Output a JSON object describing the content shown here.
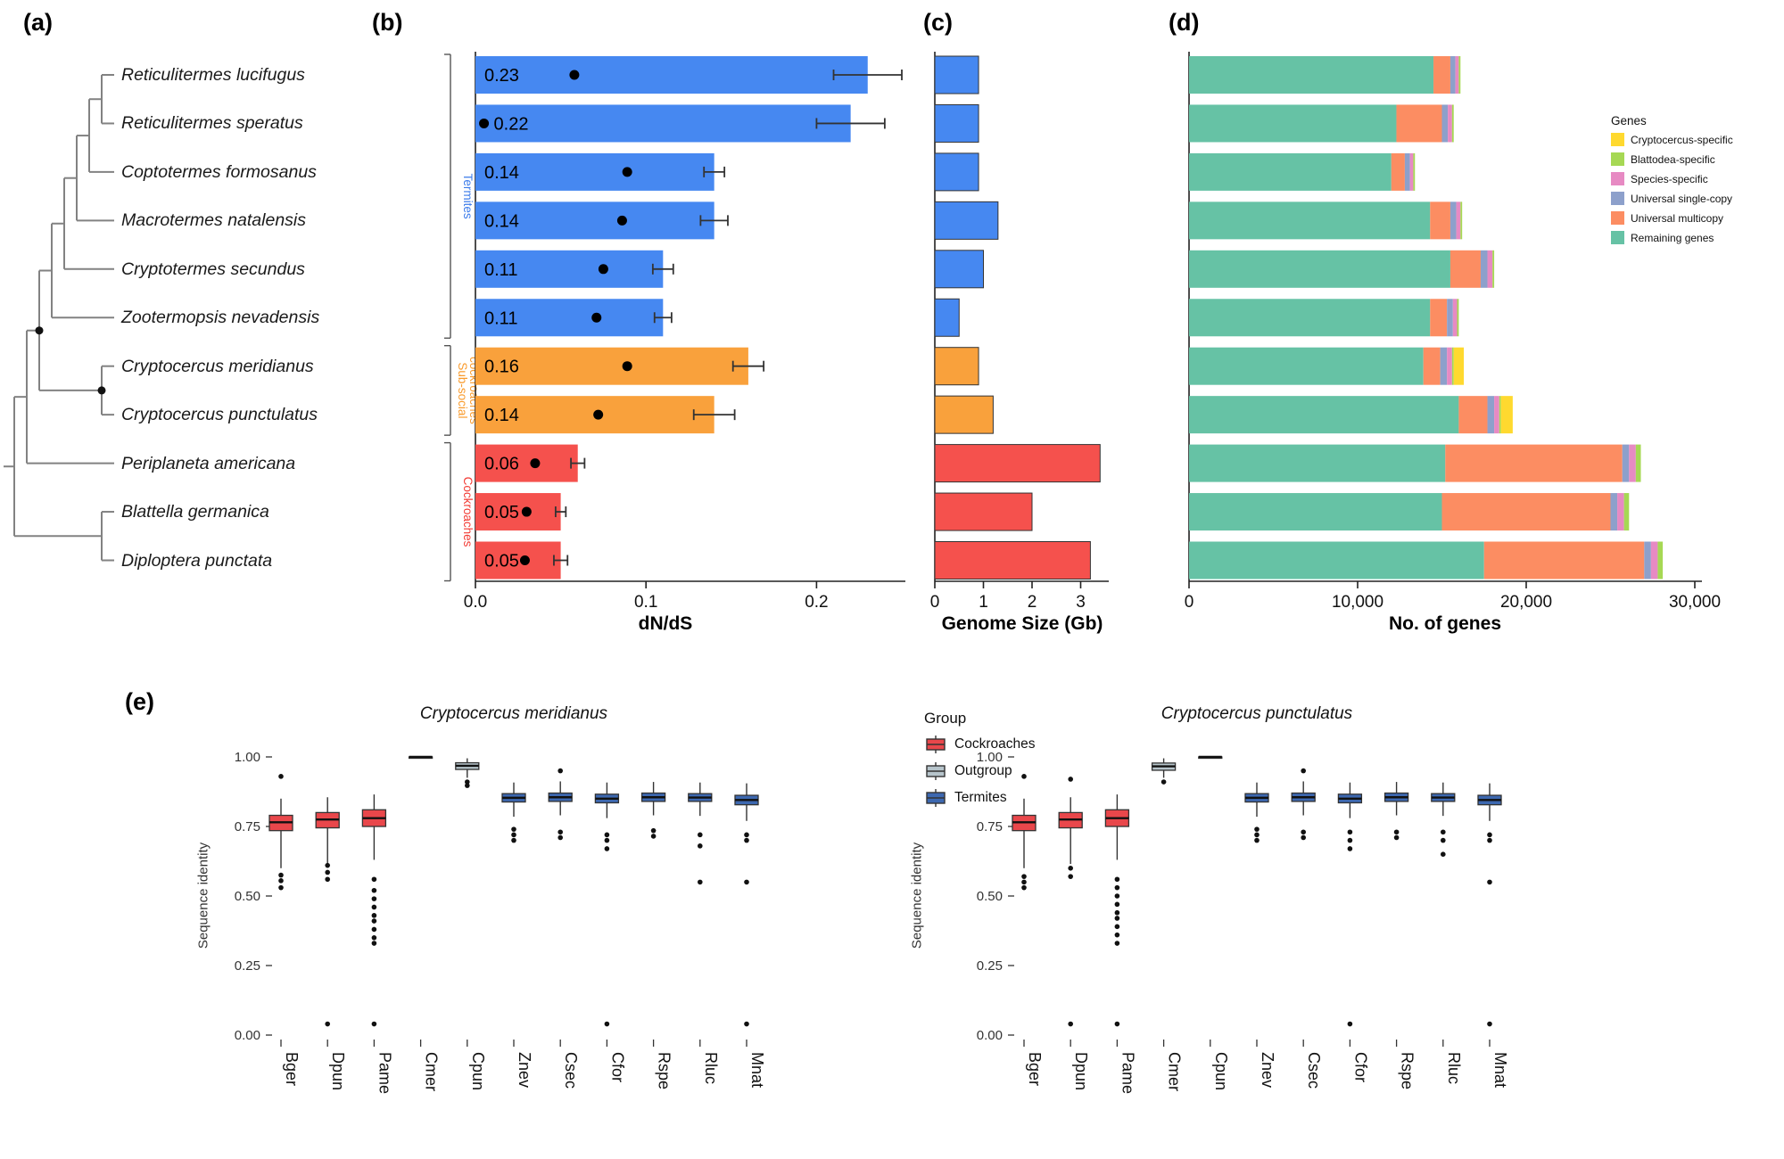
{
  "panel_tags": {
    "a": "(a)",
    "b": "(b)",
    "c": "(c)",
    "d": "(d)",
    "e": "(e)"
  },
  "colors": {
    "termites": "#4688F1",
    "subsocial": "#F9A13C",
    "cockroaches": "#F5514D",
    "tree_line": "#828282",
    "axis": "#222222",
    "stack": {
      "remaining": "#66C2A5",
      "multicopy": "#FC8D62",
      "single_copy": "#8DA0CB",
      "species_specific": "#E78AC3",
      "blattodea_specific": "#A6D854",
      "cryptocercus_specific": "#FFD92F"
    },
    "box_groups": {
      "Cockroaches": "#E9474B",
      "Outgroup": "#B6C4CB",
      "Termites": "#3D68B0"
    },
    "clade_termites": "#3B7BEA",
    "clade_subsocial": "#F99B2D",
    "clade_cockroaches": "#F23B34"
  },
  "species": [
    {
      "name": "Reticulitermes lucifugus",
      "group": "Termites"
    },
    {
      "name": "Reticulitermes speratus",
      "group": "Termites"
    },
    {
      "name": "Coptotermes formosanus",
      "group": "Termites"
    },
    {
      "name": "Macrotermes natalensis",
      "group": "Termites"
    },
    {
      "name": "Cryptotermes secundus",
      "group": "Termites"
    },
    {
      "name": "Zootermopsis nevadensis",
      "group": "Termites"
    },
    {
      "name": "Cryptocercus meridianus",
      "group": "Subsocial"
    },
    {
      "name": "Cryptocercus punctulatus",
      "group": "Subsocial"
    },
    {
      "name": "Periplaneta americana",
      "group": "Cockroaches"
    },
    {
      "name": "Blattella germanica",
      "group": "Cockroaches"
    },
    {
      "name": "Diploptera punctata",
      "group": "Cockroaches"
    }
  ],
  "clade_labels": [
    {
      "label": "Termites",
      "rows": [
        0,
        5
      ],
      "color": "#3B7BEA"
    },
    {
      "label": "Sub-social cockroaches",
      "rows": [
        6,
        7
      ],
      "color": "#F99B2D"
    },
    {
      "label": "Cockroaches",
      "rows": [
        8,
        10
      ],
      "color": "#F23B34"
    }
  ],
  "tree": {
    "topology": [
      [
        [
          [
            [
              [
                [
                  [
                    0,
                    1
                  ],
                  2
                ],
                3
              ],
              4
            ],
            5
          ],
          [
            6,
            7
          ]
        ],
        8
      ],
      [
        9,
        10
      ]
    ]
  },
  "legend_genes": {
    "title": "Genes",
    "items": [
      {
        "label": "Cryptocercus-specific",
        "color_key": "cryptocercus_specific"
      },
      {
        "label": "Blattodea-specific",
        "color_key": "blattodea_specific"
      },
      {
        "label": "Species-specific",
        "color_key": "species_specific"
      },
      {
        "label": "Universal single-copy",
        "color_key": "single_copy"
      },
      {
        "label": "Universal multicopy",
        "color_key": "multicopy"
      },
      {
        "label": "Remaining genes",
        "color_key": "remaining"
      }
    ]
  },
  "legend_group": {
    "title": "Group",
    "items": [
      {
        "label": "Cockroaches",
        "color_key": "Cockroaches"
      },
      {
        "label": "Outgroup",
        "color_key": "Outgroup"
      },
      {
        "label": "Termites",
        "color_key": "Termites"
      }
    ]
  },
  "chart_data": [
    {
      "id": "dnds",
      "type": "bar",
      "orientation": "horizontal",
      "xlabel": "dN/dS",
      "xlim": [
        0,
        0.25
      ],
      "xticks": [
        0,
        0.1,
        0.2
      ],
      "xtick_labels": [
        "0.0",
        "0.1",
        "0.2"
      ],
      "categories": [
        "Reticulitermes lucifugus",
        "Reticulitermes speratus",
        "Coptotermes formosanus",
        "Macrotermes natalensis",
        "Cryptotermes secundus",
        "Zootermopsis nevadensis",
        "Cryptocercus meridianus",
        "Cryptocercus punctulatus",
        "Periplaneta americana",
        "Blattella germanica",
        "Diploptera punctata"
      ],
      "values": [
        0.23,
        0.22,
        0.14,
        0.14,
        0.11,
        0.11,
        0.16,
        0.14,
        0.06,
        0.05,
        0.05
      ],
      "bar_labels": [
        "0.23",
        "0.22",
        "0.14",
        "0.14",
        "0.11",
        "0.11",
        "0.16",
        "0.14",
        "0.06",
        "0.05",
        "0.05"
      ],
      "errors": [
        0.02,
        0.02,
        0.006,
        0.008,
        0.006,
        0.005,
        0.009,
        0.012,
        0.004,
        0.003,
        0.004
      ],
      "point_estimates": [
        0.058,
        0.005,
        0.089,
        0.086,
        0.075,
        0.071,
        0.089,
        0.072,
        0.035,
        0.03,
        0.029
      ]
    },
    {
      "id": "genome_size",
      "type": "bar",
      "orientation": "horizontal",
      "xlabel": "Genome Size (Gb)",
      "xlim": [
        0,
        3.6
      ],
      "xticks": [
        0,
        1,
        2,
        3
      ],
      "xtick_labels": [
        "0",
        "1",
        "2",
        "3"
      ],
      "categories": [
        "Reticulitermes lucifugus",
        "Reticulitermes speratus",
        "Coptotermes formosanus",
        "Macrotermes natalensis",
        "Cryptotermes secundus",
        "Zootermopsis nevadensis",
        "Cryptocercus meridianus",
        "Cryptocercus punctulatus",
        "Periplaneta americana",
        "Blattella germanica",
        "Diploptera punctata"
      ],
      "values": [
        0.9,
        0.9,
        0.9,
        1.3,
        1.0,
        0.5,
        0.9,
        1.2,
        3.4,
        2.0,
        3.2
      ]
    },
    {
      "id": "gene_counts",
      "type": "stacked_bar",
      "orientation": "horizontal",
      "xlabel": "No. of genes",
      "xlim": [
        0,
        30000
      ],
      "xticks": [
        0,
        10000,
        20000,
        30000
      ],
      "xtick_labels": [
        "0",
        "10,000",
        "20,000",
        "30,000"
      ],
      "categories": [
        "Reticulitermes lucifugus",
        "Reticulitermes speratus",
        "Coptotermes formosanus",
        "Macrotermes natalensis",
        "Cryptotermes secundus",
        "Zootermopsis nevadensis",
        "Cryptocercus meridianus",
        "Cryptocercus punctulatus",
        "Periplaneta americana",
        "Blattella germanica",
        "Diploptera punctata"
      ],
      "series": [
        {
          "name": "Remaining genes",
          "color_key": "remaining",
          "values": [
            14500,
            12300,
            12000,
            14300,
            15500,
            14300,
            13900,
            16000,
            15200,
            15000,
            17500
          ]
        },
        {
          "name": "Universal multicopy",
          "color_key": "multicopy",
          "values": [
            1000,
            2700,
            800,
            1200,
            1800,
            1000,
            1000,
            1700,
            10500,
            10000,
            9500
          ]
        },
        {
          "name": "Universal single-copy",
          "color_key": "single_copy",
          "values": [
            300,
            350,
            300,
            350,
            400,
            350,
            400,
            400,
            400,
            400,
            400
          ]
        },
        {
          "name": "Species-specific",
          "color_key": "species_specific",
          "values": [
            200,
            250,
            200,
            250,
            300,
            250,
            300,
            300,
            400,
            400,
            400
          ]
        },
        {
          "name": "Blattodea-specific",
          "color_key": "blattodea_specific",
          "values": [
            100,
            100,
            100,
            100,
            100,
            100,
            100,
            100,
            300,
            300,
            300
          ]
        },
        {
          "name": "Cryptocercus-specific",
          "color_key": "cryptocercus_specific",
          "values": [
            0,
            0,
            0,
            0,
            0,
            0,
            600,
            700,
            0,
            0,
            0
          ]
        }
      ]
    },
    {
      "id": "seq_identity_cmer",
      "type": "boxplot",
      "title": "Cryptocercus meridianus",
      "ylabel": "Sequence identity",
      "yticks": [
        0,
        0.25,
        0.5,
        0.75,
        1
      ],
      "ytick_labels": [
        "0.00",
        "0.25",
        "0.50",
        "0.75",
        "1.00"
      ],
      "categories": [
        "Bger",
        "Dpun",
        "Pame",
        "Cmer",
        "Cpun",
        "Znev",
        "Csec",
        "Cfor",
        "Rspe",
        "Rluc",
        "Mnat"
      ],
      "groups": [
        "Cockroaches",
        "Cockroaches",
        "Cockroaches",
        "Outgroup",
        "Outgroup",
        "Termites",
        "Termites",
        "Termites",
        "Termites",
        "Termites",
        "Termites"
      ],
      "boxes": [
        {
          "whislo": 0.6,
          "q1": 0.735,
          "med": 0.765,
          "q3": 0.79,
          "whishi": 0.85,
          "outliers": [
            0.93,
            0.575,
            0.555,
            0.53
          ]
        },
        {
          "whislo": 0.615,
          "q1": 0.745,
          "med": 0.775,
          "q3": 0.8,
          "whishi": 0.855,
          "outliers": [
            0.61,
            0.585,
            0.56,
            0.04
          ]
        },
        {
          "whislo": 0.63,
          "q1": 0.75,
          "med": 0.78,
          "q3": 0.81,
          "whishi": 0.865,
          "outliers": [
            0.56,
            0.52,
            0.49,
            0.46,
            0.43,
            0.41,
            0.38,
            0.35,
            0.33,
            0.04
          ]
        },
        {
          "whislo": 0.998,
          "q1": 0.999,
          "med": 1.0,
          "q3": 1.0,
          "whishi": 1.0,
          "outliers": []
        },
        {
          "whislo": 0.925,
          "q1": 0.955,
          "med": 0.968,
          "q3": 0.979,
          "whishi": 0.995,
          "outliers": [
            0.91,
            0.897
          ]
        },
        {
          "whislo": 0.785,
          "q1": 0.838,
          "med": 0.853,
          "q3": 0.868,
          "whishi": 0.908,
          "outliers": [
            0.74,
            0.72,
            0.7
          ]
        },
        {
          "whislo": 0.79,
          "q1": 0.84,
          "med": 0.855,
          "q3": 0.87,
          "whishi": 0.912,
          "outliers": [
            0.95,
            0.73,
            0.71
          ]
        },
        {
          "whislo": 0.78,
          "q1": 0.835,
          "med": 0.85,
          "q3": 0.866,
          "whishi": 0.908,
          "outliers": [
            0.72,
            0.7,
            0.67,
            0.04
          ]
        },
        {
          "whislo": 0.79,
          "q1": 0.84,
          "med": 0.855,
          "q3": 0.87,
          "whishi": 0.91,
          "outliers": [
            0.735,
            0.715
          ]
        },
        {
          "whislo": 0.788,
          "q1": 0.84,
          "med": 0.854,
          "q3": 0.868,
          "whishi": 0.908,
          "outliers": [
            0.72,
            0.68,
            0.55
          ]
        },
        {
          "whislo": 0.77,
          "q1": 0.828,
          "med": 0.845,
          "q3": 0.862,
          "whishi": 0.905,
          "outliers": [
            0.72,
            0.7,
            0.55,
            0.04
          ]
        }
      ]
    },
    {
      "id": "seq_identity_cpun",
      "type": "boxplot",
      "title": "Cryptocercus punctulatus",
      "ylabel": "Sequence identity",
      "yticks": [
        0,
        0.25,
        0.5,
        0.75,
        1
      ],
      "ytick_labels": [
        "0.00",
        "0.25",
        "0.50",
        "0.75",
        "1.00"
      ],
      "categories": [
        "Bger",
        "Dpun",
        "Pame",
        "Cmer",
        "Cpun",
        "Znev",
        "Csec",
        "Cfor",
        "Rspe",
        "Rluc",
        "Mnat"
      ],
      "groups": [
        "Cockroaches",
        "Cockroaches",
        "Cockroaches",
        "Outgroup",
        "Outgroup",
        "Termites",
        "Termites",
        "Termites",
        "Termites",
        "Termites",
        "Termites"
      ],
      "boxes": [
        {
          "whislo": 0.6,
          "q1": 0.735,
          "med": 0.765,
          "q3": 0.79,
          "whishi": 0.85,
          "outliers": [
            0.93,
            0.57,
            0.55,
            0.53
          ]
        },
        {
          "whislo": 0.615,
          "q1": 0.745,
          "med": 0.775,
          "q3": 0.8,
          "whishi": 0.855,
          "outliers": [
            0.92,
            0.6,
            0.57,
            0.04
          ]
        },
        {
          "whislo": 0.63,
          "q1": 0.75,
          "med": 0.78,
          "q3": 0.81,
          "whishi": 0.865,
          "outliers": [
            0.56,
            0.53,
            0.5,
            0.47,
            0.44,
            0.42,
            0.39,
            0.36,
            0.33,
            0.04
          ]
        },
        {
          "whislo": 0.925,
          "q1": 0.952,
          "med": 0.966,
          "q3": 0.978,
          "whishi": 0.995,
          "outliers": [
            0.91
          ]
        },
        {
          "whislo": 0.998,
          "q1": 0.999,
          "med": 1.0,
          "q3": 1.0,
          "whishi": 1.0,
          "outliers": []
        },
        {
          "whislo": 0.785,
          "q1": 0.838,
          "med": 0.853,
          "q3": 0.868,
          "whishi": 0.908,
          "outliers": [
            0.74,
            0.72,
            0.7
          ]
        },
        {
          "whislo": 0.79,
          "q1": 0.84,
          "med": 0.855,
          "q3": 0.87,
          "whishi": 0.912,
          "outliers": [
            0.95,
            0.73,
            0.71
          ]
        },
        {
          "whislo": 0.78,
          "q1": 0.835,
          "med": 0.85,
          "q3": 0.866,
          "whishi": 0.908,
          "outliers": [
            0.73,
            0.7,
            0.67,
            0.04
          ]
        },
        {
          "whislo": 0.79,
          "q1": 0.84,
          "med": 0.855,
          "q3": 0.87,
          "whishi": 0.91,
          "outliers": [
            0.73,
            0.71
          ]
        },
        {
          "whislo": 0.788,
          "q1": 0.84,
          "med": 0.854,
          "q3": 0.868,
          "whishi": 0.908,
          "outliers": [
            0.73,
            0.7,
            0.65
          ]
        },
        {
          "whislo": 0.77,
          "q1": 0.828,
          "med": 0.845,
          "q3": 0.862,
          "whishi": 0.905,
          "outliers": [
            0.72,
            0.7,
            0.55,
            0.04
          ]
        }
      ]
    }
  ]
}
